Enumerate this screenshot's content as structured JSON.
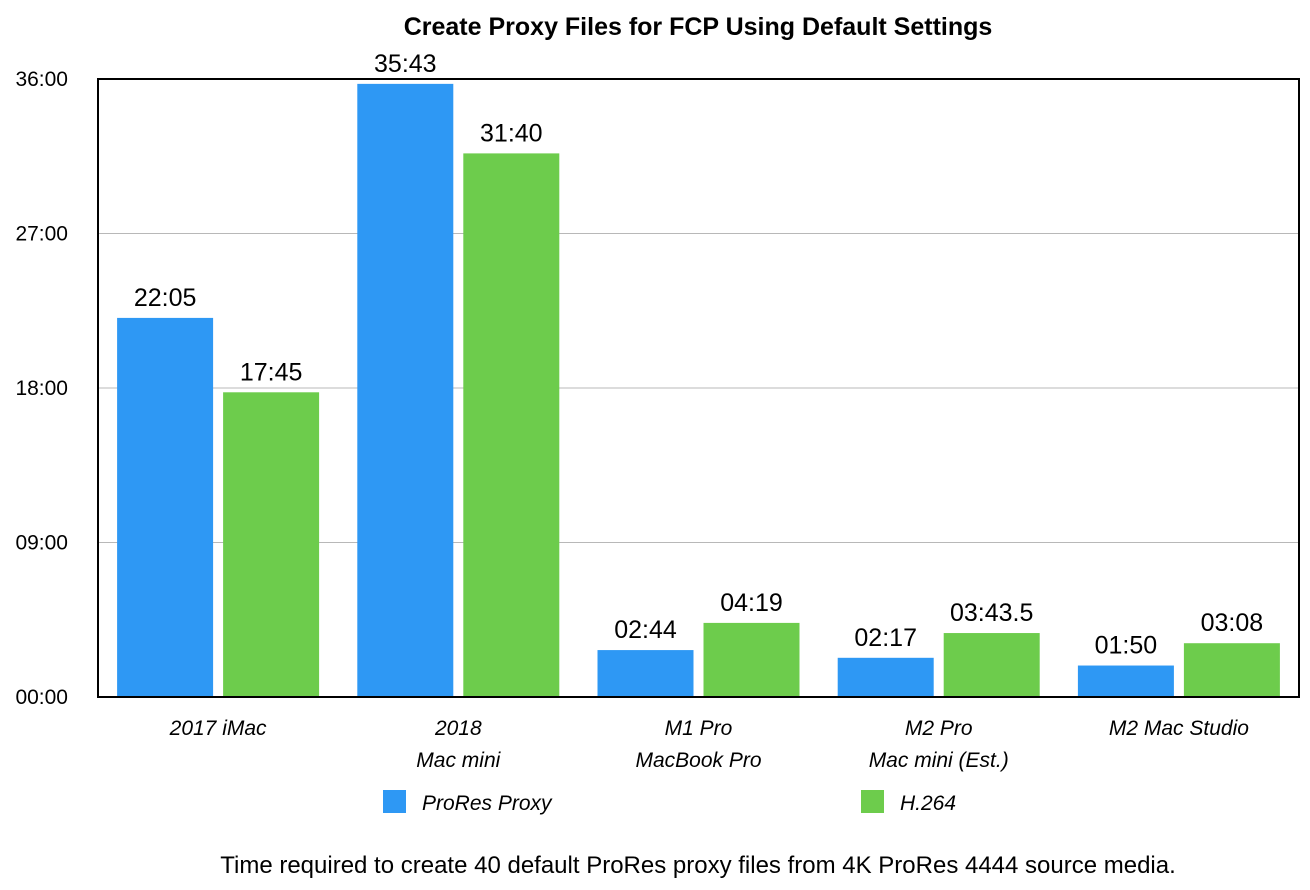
{
  "chart_data": {
    "type": "bar",
    "title": "Create Proxy Files for FCP Using Default Settings",
    "caption": "Time required to create 40 default ProRes proxy files from 4K ProRes 4444 source media.",
    "categories": [
      [
        "2017 iMac"
      ],
      [
        "2018",
        "Mac mini"
      ],
      [
        "M1 Pro",
        "MacBook Pro"
      ],
      [
        "M2 Pro",
        "Mac mini  (Est.)"
      ],
      [
        "M2 Mac Studio"
      ]
    ],
    "series": [
      {
        "name": "ProRes Proxy",
        "color": "#2e98f4",
        "values": [
          1325,
          2143,
          164,
          137,
          110
        ],
        "labels": [
          "22:05",
          "35:43",
          "02:44",
          "02:17",
          "01:50"
        ]
      },
      {
        "name": "H.264",
        "color": "#6dcc4c",
        "values": [
          1065,
          1900,
          259,
          223.5,
          188
        ],
        "labels": [
          "17:45",
          "31:40",
          "04:19",
          "03:43.5",
          "03:08"
        ]
      }
    ],
    "ylabel": "",
    "xlabel": "",
    "ylim": [
      0,
      2160
    ],
    "yticks": [
      0,
      540,
      1080,
      1620,
      2160
    ],
    "ytick_labels": [
      "00:00",
      "09:00",
      "18:00",
      "27:00",
      "36:00"
    ],
    "y_units": "seconds",
    "grid": true,
    "legend_position": "bottom"
  }
}
